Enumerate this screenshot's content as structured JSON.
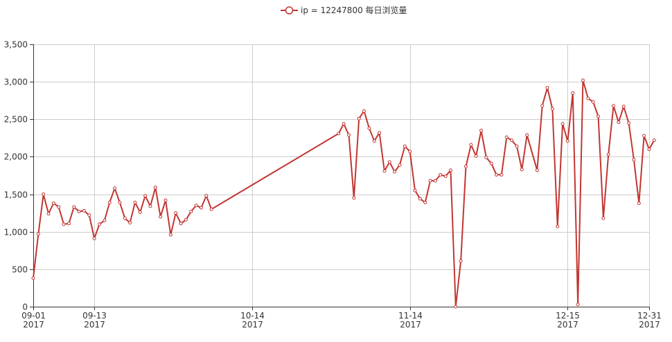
{
  "chart_data": {
    "type": "line",
    "legend": [
      "ip = 12247800 每日浏览量"
    ],
    "y_axis": {
      "min": 0,
      "max": 3500,
      "ticks": [
        0,
        500,
        1000,
        1500,
        2000,
        2500,
        3000,
        3500
      ],
      "tick_labels": [
        "0",
        "500",
        "1,000",
        "1,500",
        "2,000",
        "2,500",
        "3,000",
        "3,500"
      ]
    },
    "x_axis": {
      "start": "2017-09-01",
      "end": "2017-12-31",
      "ticks": [
        {
          "date": "2017-09-01",
          "label": "09-01",
          "year": "2017"
        },
        {
          "date": "2017-09-13",
          "label": "09-13",
          "year": "2017"
        },
        {
          "date": "2017-10-14",
          "label": "10-14",
          "year": "2017"
        },
        {
          "date": "2017-11-14",
          "label": "11-14",
          "year": "2017"
        },
        {
          "date": "2017-12-15",
          "label": "12-15",
          "year": "2017"
        },
        {
          "date": "2017-12-31",
          "label": "12-31",
          "year": "2017"
        }
      ]
    },
    "grid": true,
    "color": "#c23531",
    "series": [
      {
        "name": "ip = 12247800 每日浏览量",
        "points": [
          [
            "2017-09-01",
            380
          ],
          [
            "2017-09-02",
            970
          ],
          [
            "2017-09-03",
            1500
          ],
          [
            "2017-09-04",
            1240
          ],
          [
            "2017-09-05",
            1380
          ],
          [
            "2017-09-06",
            1330
          ],
          [
            "2017-09-07",
            1100
          ],
          [
            "2017-09-08",
            1110
          ],
          [
            "2017-09-09",
            1330
          ],
          [
            "2017-09-10",
            1270
          ],
          [
            "2017-09-11",
            1280
          ],
          [
            "2017-09-12",
            1220
          ],
          [
            "2017-09-13",
            910
          ],
          [
            "2017-09-14",
            1100
          ],
          [
            "2017-09-15",
            1150
          ],
          [
            "2017-09-16",
            1390
          ],
          [
            "2017-09-17",
            1580
          ],
          [
            "2017-09-18",
            1390
          ],
          [
            "2017-09-19",
            1180
          ],
          [
            "2017-09-20",
            1120
          ],
          [
            "2017-09-21",
            1390
          ],
          [
            "2017-09-22",
            1260
          ],
          [
            "2017-09-23",
            1480
          ],
          [
            "2017-09-24",
            1340
          ],
          [
            "2017-09-25",
            1590
          ],
          [
            "2017-09-26",
            1200
          ],
          [
            "2017-09-27",
            1420
          ],
          [
            "2017-09-28",
            960
          ],
          [
            "2017-09-29",
            1250
          ],
          [
            "2017-09-30",
            1110
          ],
          [
            "2017-10-01",
            1160
          ],
          [
            "2017-10-02",
            1270
          ],
          [
            "2017-10-03",
            1350
          ],
          [
            "2017-10-04",
            1320
          ],
          [
            "2017-10-05",
            1480
          ],
          [
            "2017-10-06",
            1300
          ],
          [
            "2017-10-31",
            2310
          ],
          [
            "2017-11-01",
            2440
          ],
          [
            "2017-11-02",
            2290
          ],
          [
            "2017-11-03",
            1450
          ],
          [
            "2017-11-04",
            2510
          ],
          [
            "2017-11-05",
            2610
          ],
          [
            "2017-11-06",
            2380
          ],
          [
            "2017-11-07",
            2210
          ],
          [
            "2017-11-08",
            2320
          ],
          [
            "2017-11-09",
            1810
          ],
          [
            "2017-11-10",
            1930
          ],
          [
            "2017-11-11",
            1800
          ],
          [
            "2017-11-12",
            1890
          ],
          [
            "2017-11-13",
            2140
          ],
          [
            "2017-11-14",
            2070
          ],
          [
            "2017-11-15",
            1550
          ],
          [
            "2017-11-16",
            1440
          ],
          [
            "2017-11-17",
            1390
          ],
          [
            "2017-11-18",
            1680
          ],
          [
            "2017-11-19",
            1680
          ],
          [
            "2017-11-20",
            1760
          ],
          [
            "2017-11-21",
            1740
          ],
          [
            "2017-11-22",
            1820
          ],
          [
            "2017-11-23",
            0
          ],
          [
            "2017-11-24",
            610
          ],
          [
            "2017-11-25",
            1870
          ],
          [
            "2017-11-26",
            2160
          ],
          [
            "2017-11-27",
            2010
          ],
          [
            "2017-11-28",
            2350
          ],
          [
            "2017-11-29",
            1990
          ],
          [
            "2017-11-30",
            1910
          ],
          [
            "2017-12-01",
            1760
          ],
          [
            "2017-12-02",
            1760
          ],
          [
            "2017-12-03",
            2260
          ],
          [
            "2017-12-04",
            2220
          ],
          [
            "2017-12-05",
            2140
          ],
          [
            "2017-12-06",
            1830
          ],
          [
            "2017-12-07",
            2290
          ],
          [
            "2017-12-09",
            1820
          ],
          [
            "2017-12-10",
            2680
          ],
          [
            "2017-12-11",
            2920
          ],
          [
            "2017-12-12",
            2640
          ],
          [
            "2017-12-13",
            1070
          ],
          [
            "2017-12-14",
            2440
          ],
          [
            "2017-12-15",
            2210
          ],
          [
            "2017-12-16",
            2850
          ],
          [
            "2017-12-17",
            30
          ],
          [
            "2017-12-18",
            3020
          ],
          [
            "2017-12-19",
            2780
          ],
          [
            "2017-12-20",
            2730
          ],
          [
            "2017-12-21",
            2540
          ],
          [
            "2017-12-22",
            1180
          ],
          [
            "2017-12-23",
            2030
          ],
          [
            "2017-12-24",
            2680
          ],
          [
            "2017-12-25",
            2460
          ],
          [
            "2017-12-26",
            2670
          ],
          [
            "2017-12-27",
            2450
          ],
          [
            "2017-12-28",
            1960
          ],
          [
            "2017-12-29",
            1380
          ],
          [
            "2017-12-30",
            2280
          ],
          [
            "2017-12-31",
            2100
          ],
          [
            "2018-01-01",
            2220
          ]
        ]
      }
    ]
  }
}
